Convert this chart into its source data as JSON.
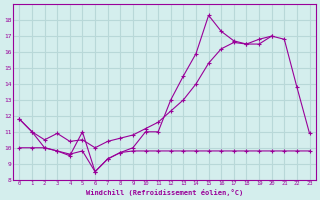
{
  "x": [
    0,
    1,
    2,
    3,
    4,
    5,
    6,
    7,
    8,
    9,
    10,
    11,
    12,
    13,
    14,
    15,
    16,
    17,
    18,
    19,
    20,
    21,
    22,
    23
  ],
  "line1_y": [
    11.8,
    11.0,
    10.0,
    9.8,
    9.5,
    11.0,
    8.5,
    9.3,
    9.7,
    10.0,
    11.0,
    11.0,
    13.0,
    14.5,
    15.9,
    18.3,
    17.3,
    16.7,
    16.5,
    16.5,
    17.0,
    16.8,
    13.8,
    10.9
  ],
  "line2_x": [
    0,
    1,
    2,
    3,
    4,
    5,
    6,
    7,
    8,
    9,
    10,
    11,
    12,
    13,
    14,
    15,
    16,
    17,
    18,
    19,
    20
  ],
  "line2_y": [
    11.8,
    11.0,
    10.5,
    10.9,
    10.4,
    10.5,
    10.0,
    10.4,
    10.6,
    10.8,
    11.2,
    11.6,
    12.3,
    13.0,
    14.0,
    15.3,
    16.2,
    16.6,
    16.5,
    16.8,
    17.0
  ],
  "line3_x": [
    0,
    1,
    2,
    3,
    4,
    5,
    6,
    7,
    8,
    9,
    10,
    11,
    12,
    13,
    14,
    15,
    16,
    17,
    18,
    19,
    20,
    21,
    22,
    23
  ],
  "line3_y": [
    10.0,
    10.0,
    10.0,
    9.8,
    9.6,
    9.8,
    8.5,
    9.3,
    9.7,
    9.8,
    9.8,
    9.8,
    9.8,
    9.8,
    9.8,
    9.8,
    9.8,
    9.8,
    9.8,
    9.8,
    9.8,
    9.8,
    9.8,
    9.8
  ],
  "line_color": "#990099",
  "bg_color": "#d4eeed",
  "grid_color": "#b8d8d8",
  "xlabel": "Windchill (Refroidissement éolien,°C)",
  "ylim": [
    8,
    19
  ],
  "xlim": [
    -0.5,
    23.5
  ],
  "yticks": [
    8,
    9,
    10,
    11,
    12,
    13,
    14,
    15,
    16,
    17,
    18
  ],
  "xticks": [
    0,
    1,
    2,
    3,
    4,
    5,
    6,
    7,
    8,
    9,
    10,
    11,
    12,
    13,
    14,
    15,
    16,
    17,
    18,
    19,
    20,
    21,
    22,
    23
  ]
}
